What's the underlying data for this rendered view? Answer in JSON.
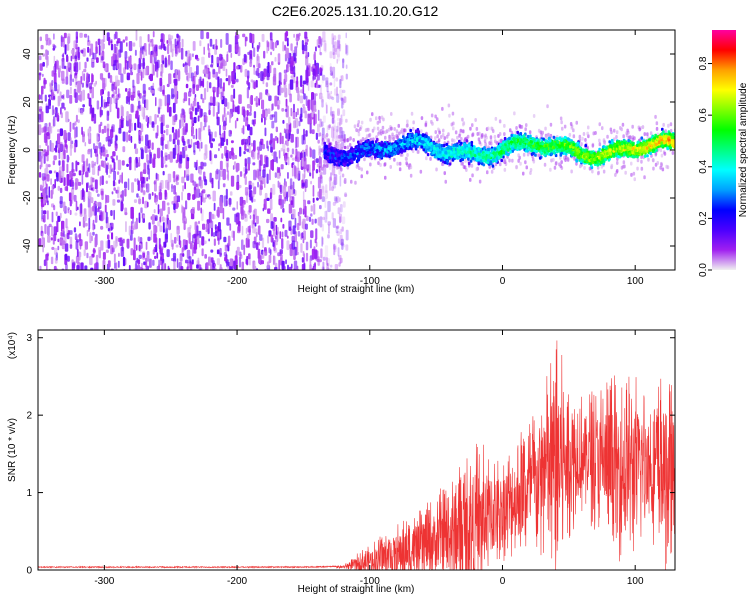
{
  "figure_title": "C2E6.2025.131.10.20.G12",
  "chart_data": [
    {
      "type": "heatmap",
      "title": "C2E6.2025.131.10.20.G12",
      "xlabel": "Height of straight line (km)",
      "ylabel": "Frequency (Hz)",
      "xlim": [
        -350,
        130
      ],
      "ylim": [
        -50,
        50
      ],
      "x_ticks": [
        -300,
        -200,
        -100,
        0,
        100
      ],
      "y_ticks": [
        -40,
        -20,
        0,
        20,
        40
      ],
      "colorbar": {
        "label": "Normalized spectral amplitude",
        "range": [
          0,
          0.93
        ],
        "ticks": [
          0.0,
          0.2,
          0.4,
          0.6,
          0.8
        ],
        "colormap": [
          "#f0f0f0",
          "#a020f0",
          "#4b00ff",
          "#0000ff",
          "#00a0ff",
          "#00ffff",
          "#00ff80",
          "#00ff00",
          "#80ff00",
          "#ffff00",
          "#ffa000",
          "#ff0000",
          "#ff00a0"
        ]
      },
      "regions": [
        {
          "name": "noise",
          "x_range": [
            -350,
            -130
          ],
          "freq_range": [
            -50,
            50
          ],
          "amplitude_approx": 0.05
        },
        {
          "name": "signal",
          "x_range": [
            -140,
            130
          ],
          "freq_center_approx": 2,
          "bandwidth_hz_approx": 10,
          "peak_amplitude_approx": 0.9
        }
      ],
      "grid": false
    },
    {
      "type": "line",
      "xlabel": "Height of straight line (km)",
      "ylabel": "SNR (10 * v/v)",
      "y_scale_label": "(x10⁴)",
      "xlim": [
        -350,
        130
      ],
      "ylim": [
        0,
        3.1
      ],
      "x_ticks": [
        -300,
        -200,
        -100,
        0,
        100
      ],
      "y_ticks": [
        0,
        1,
        2,
        3
      ],
      "color": "#ee3333",
      "grid": false,
      "series": [
        {
          "x": [
            -350,
            -300,
            -250,
            -200,
            -150,
            -120,
            -100,
            -80,
            -60,
            -40,
            -20,
            0,
            20,
            30,
            40,
            50,
            60,
            70,
            80,
            90,
            100,
            110,
            120,
            130
          ],
          "y_mean": [
            0.03,
            0.03,
            0.03,
            0.03,
            0.03,
            0.04,
            0.12,
            0.2,
            0.3,
            0.45,
            0.6,
            0.8,
            1.05,
            1.2,
            1.35,
            1.45,
            1.5,
            1.45,
            1.35,
            1.3,
            1.35,
            1.4,
            1.3,
            1.2
          ],
          "y_peak": [
            0.05,
            0.05,
            0.05,
            0.05,
            0.05,
            0.06,
            0.35,
            0.6,
            0.8,
            1.2,
            1.7,
            1.5,
            2.0,
            2.3,
            3.1,
            2.5,
            2.3,
            2.4,
            2.6,
            2.5,
            2.6,
            2.3,
            2.6,
            2.4
          ]
        }
      ]
    }
  ]
}
